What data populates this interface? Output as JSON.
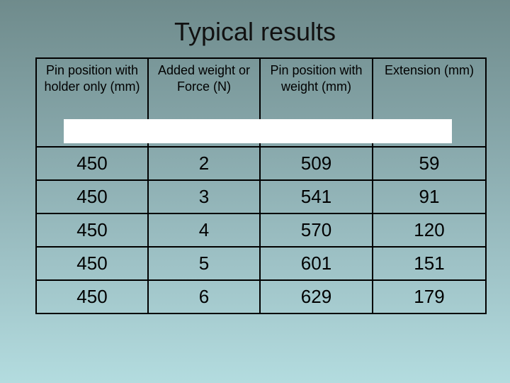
{
  "title": "Typical results",
  "table": {
    "headers": [
      "Pin position with holder only (mm)",
      "Added weight or Force (N)",
      "Pin position with weight (mm)",
      "Extension (mm)"
    ],
    "rows": [
      [
        "450",
        "2",
        "509",
        "59"
      ],
      [
        "450",
        "3",
        "541",
        "91"
      ],
      [
        "450",
        "4",
        "570",
        "120"
      ],
      [
        "450",
        "5",
        "601",
        "151"
      ],
      [
        "450",
        "6",
        "629",
        "179"
      ]
    ]
  }
}
